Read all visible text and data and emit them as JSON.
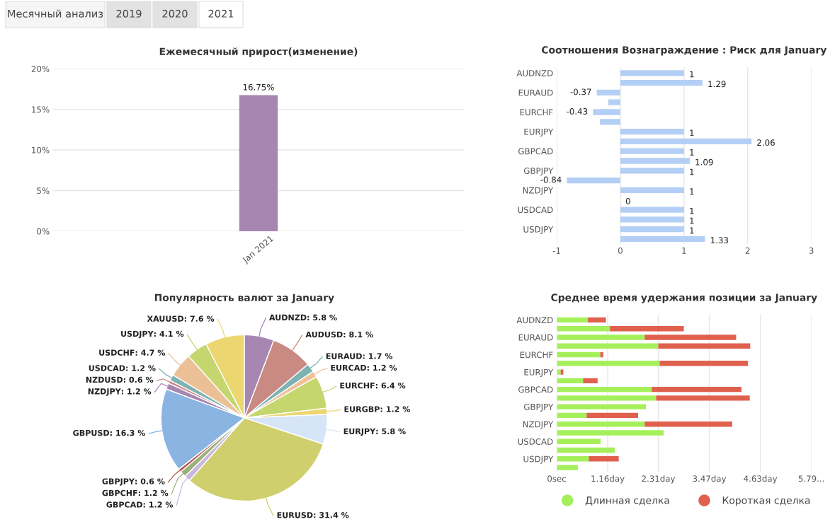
{
  "chart_data": [
    {
      "type": "other",
      "annotations": [
        "Месячный анализ",
        "2019",
        "2020",
        "2021"
      ]
    },
    {
      "type": "bar",
      "title": "Ежемесячный прирост(изменение)",
      "categories": [
        "Jan 2021"
      ],
      "values": [
        16.75
      ],
      "color": "#a886b2",
      "value_labels": [
        "16.75%"
      ],
      "ylim": [
        0,
        20
      ],
      "yticks": [
        {
          "value": 0,
          "label": "0%"
        },
        {
          "value": 5,
          "label": "5%"
        },
        {
          "value": 10,
          "label": "10%"
        },
        {
          "value": 15,
          "label": "15%"
        },
        {
          "value": 20,
          "label": "20%"
        }
      ],
      "grid": "y"
    },
    {
      "type": "bar",
      "orientation": "horizontal",
      "title": "Соотношения Вознаграждение : Риск для January",
      "categories": [
        "AUDNZD",
        null,
        "EURAUD",
        null,
        "EURCHF",
        null,
        "EURJPY",
        null,
        "GBPCAD",
        null,
        "GBPJPY",
        null,
        "NZDJPY",
        null,
        "USDCAD",
        null,
        "USDJPY",
        null
      ],
      "values": [
        1,
        1.29,
        -0.37,
        -0.19,
        -0.43,
        -0.32,
        1,
        2.06,
        1,
        1.09,
        1,
        -0.84,
        1,
        0,
        1,
        1,
        1,
        1.33
      ],
      "value_labels": [
        "1",
        "1.29",
        "-0.37",
        null,
        "-0.43",
        null,
        "1",
        "2.06",
        "1",
        "1.09",
        "1",
        "-0.84",
        "1",
        "0",
        "1",
        "1",
        "1",
        "1.33"
      ],
      "color": "#b3cff5",
      "xlim": [
        -1,
        3
      ],
      "xticks": [
        -1,
        0,
        1,
        2,
        3
      ],
      "grid": "x"
    },
    {
      "type": "pie",
      "title": "Популярность валют за January",
      "categories": [
        "AUDNZD",
        "AUDUSD",
        "EURAUD",
        "EURCAD",
        "EURCHF",
        "EURGBP",
        "EURJPY",
        "EURUSD",
        "GBPCAD",
        "GBPCHF",
        "GBPJPY",
        "GBPUSD",
        "NZDJPY",
        "NZDUSD",
        "USDCAD",
        "USDCHF",
        "USDJPY",
        "XAUUSD"
      ],
      "values": [
        5.8,
        8.1,
        1.7,
        1.2,
        6.4,
        1.2,
        5.8,
        31.4,
        1.2,
        1.2,
        0.6,
        16.3,
        1.2,
        0.6,
        1.2,
        4.7,
        4.1,
        7.6
      ],
      "value_labels": [
        ": 5.8 %",
        ": 8.1 %",
        ": 1.7 %",
        ": 1.2 %",
        ": 6.4 %",
        ": 1.2 %",
        ": 5.8 %",
        ": 31.4 %",
        ": 1.2 %",
        ": 1.2 %",
        ": 0.6 %",
        ": 16.3 %",
        ": 1.2 %",
        ": 0.6 %",
        ": 1.2 %",
        ": 4.7 %",
        ": 4.1 %",
        ": 7.6 %"
      ],
      "colors": [
        "#a886b2",
        "#c98a83",
        "#7fb3b3",
        "#f0c097",
        "#c5d66e",
        "#ecd670",
        "#d6e6f8",
        "#cfcf6e",
        "#c8b8e0",
        "#9cb07a",
        "#b5544f",
        "#8ab4e2",
        "#a886b2",
        "#c98a83",
        "#7fb3b3",
        "#ecc097",
        "#c5d66e",
        "#ecd670"
      ]
    },
    {
      "type": "bar",
      "orientation": "horizontal",
      "stacked": true,
      "title": "Среднее время удержания позиции за January",
      "categories": [
        "AUDNZD",
        null,
        "EURAUD",
        null,
        "EURCHF",
        null,
        "EURJPY",
        null,
        "GBPCAD",
        null,
        "GBPJPY",
        null,
        "NZDJPY",
        null,
        "USDCAD",
        null,
        "USDJPY",
        null
      ],
      "series": [
        {
          "name": "Длинная сделка",
          "color": "#a5f05a",
          "values": [
            0.71,
            1.21,
            2.0,
            2.31,
            0.99,
            2.34,
            0.09,
            0.6,
            2.16,
            2.26,
            2.03,
            0.68,
            2.0,
            2.43,
            1.0,
            1.32,
            0.73,
            0.48
          ]
        },
        {
          "name": "Короткая сделка",
          "color": "#e0604e",
          "values": [
            0.41,
            1.68,
            2.08,
            2.09,
            0.07,
            2.01,
            0.06,
            0.33,
            2.04,
            2.13,
            0,
            1.17,
            1.99,
            0,
            0,
            0,
            0.68,
            0
          ]
        }
      ],
      "xlim": [
        0,
        5.79
      ],
      "xticks": [
        {
          "value": 0,
          "label": "0sec"
        },
        {
          "value": 1.16,
          "label": "1.16day"
        },
        {
          "value": 2.31,
          "label": "2.31day"
        },
        {
          "value": 3.47,
          "label": "3.47day"
        },
        {
          "value": 4.63,
          "label": "4.63day"
        },
        {
          "value": 5.79,
          "label": "5.79..."
        }
      ],
      "grid": "x",
      "legend": "bottom"
    }
  ]
}
